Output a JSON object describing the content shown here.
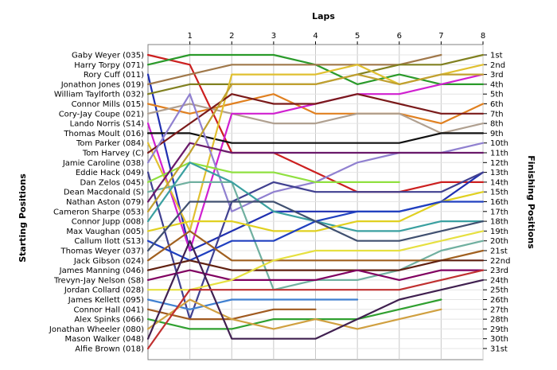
{
  "chart_data": {
    "type": "line",
    "title": "",
    "xlabel": "Laps",
    "ylabel_left": "Starting Positions",
    "ylabel_right": "Finishing Positions",
    "x_ticks": [
      "1",
      "2",
      "3",
      "4",
      "5",
      "6",
      "7",
      "8"
    ],
    "xlim": [
      0,
      8
    ],
    "ylim": [
      1,
      31
    ],
    "y_inverted": true,
    "grid": true,
    "legend": "none",
    "starting_labels": [
      "Gaby Weyer (035)",
      "Harry Torpy (071)",
      "Rory Cuff (011)",
      "Jonathon Jones (019)",
      "William Taylforth (032)",
      "Connor Mills (015)",
      "Cory-Jay Coupe (021)",
      "Lando Norris (S14)",
      "Thomas Moult (016)",
      "Tom Parker (084)",
      "Tom Harvey (C)",
      "Jamie Caroline (038)",
      "Eddie Hack (049)",
      "Dan Zelos (045)",
      "Dean Macdonald (S)",
      "Nathan Aston (079)",
      "Cameron Sharpe (053)",
      "Connor Jupp (008)",
      "Max Vaughan (005)",
      "Callum Ilott (S13)",
      "Thomas Weyer (037)",
      "Jack Gibson (024)",
      "James Manning (046)",
      "Trevyn-Jay Nelson (S8)",
      "Jordan Collard (028)",
      "James Kellett (095)",
      "Connor Hall (041)",
      "Alex Spinks (066)",
      "Jonathan Wheeler (080)",
      "Mason Walker (048)",
      "Alfie Brown (018)"
    ],
    "finishing_labels": [
      "1st",
      "2nd",
      "3rd",
      "4th",
      "5th",
      "6th",
      "7th",
      "8th",
      "9th",
      "10th",
      "11th",
      "12th",
      "13th",
      "14th",
      "15th",
      "16th",
      "17th",
      "18th",
      "19th",
      "20th",
      "21st",
      "22nd",
      "23rd",
      "24th",
      "25th",
      "26th",
      "27th",
      "28th",
      "29th",
      "30th",
      "31st"
    ],
    "series": [
      {
        "color": "#cc1f1f",
        "values": [
          1,
          2,
          11,
          11,
          13,
          15,
          15,
          14,
          14
        ]
      },
      {
        "color": "#2a9a2a",
        "values": [
          2,
          1,
          1,
          1,
          2,
          4,
          3,
          4,
          4
        ]
      },
      {
        "color": "#1f2fb0",
        "values": [
          3,
          21,
          19,
          17,
          17,
          17,
          17,
          16,
          13
        ]
      },
      {
        "color": "#a0784a",
        "values": [
          4,
          3,
          2,
          2,
          2,
          2,
          2,
          1,
          null
        ]
      },
      {
        "color": "#808020",
        "values": [
          5,
          4,
          4,
          4,
          4,
          3,
          2,
          2,
          1
        ]
      },
      {
        "color": "#e08020",
        "values": [
          6,
          7,
          6,
          5,
          7,
          7,
          7,
          8,
          6
        ]
      },
      {
        "color": "#b0a090",
        "values": [
          7,
          6,
          7,
          8,
          8,
          7,
          7,
          9,
          8
        ]
      },
      {
        "color": "#d020d0",
        "values": [
          8,
          21,
          7,
          7,
          6,
          5,
          5,
          4,
          3
        ]
      },
      {
        "color": "#101010",
        "values": [
          9,
          9,
          10,
          10,
          10,
          10,
          10,
          9,
          9
        ]
      },
      {
        "color": "#e0c030",
        "values": [
          10,
          19,
          3,
          3,
          3,
          2,
          4,
          3,
          2
        ]
      },
      {
        "color": "#7a1a1a",
        "values": [
          11,
          8,
          5,
          6,
          6,
          5,
          6,
          7,
          7
        ]
      },
      {
        "color": "#9080d0",
        "values": [
          12,
          5,
          17,
          15,
          14,
          12,
          11,
          11,
          10
        ]
      },
      {
        "color": "#404090",
        "values": [
          13,
          28,
          16,
          14,
          15,
          15,
          15,
          15,
          13
        ]
      },
      {
        "color": "#90e040",
        "values": [
          14,
          12,
          13,
          13,
          14,
          14,
          14,
          null,
          null
        ]
      },
      {
        "color": "#70b0a0",
        "values": [
          15,
          14,
          14,
          25,
          24,
          24,
          23,
          21,
          20
        ]
      },
      {
        "color": "#6a1a6a",
        "values": [
          16,
          10,
          11,
          11,
          11,
          11,
          11,
          11,
          11
        ]
      },
      {
        "color": "#c0a030",
        "values": [
          17,
          11,
          4,
          4,
          4,
          3,
          4,
          3,
          3
        ]
      },
      {
        "color": "#3aa0a0",
        "values": [
          18,
          12,
          14,
          17,
          18,
          19,
          19,
          18,
          18
        ]
      },
      {
        "color": "#e0d020",
        "values": [
          19,
          18,
          18,
          19,
          19,
          18,
          18,
          16,
          15
        ]
      },
      {
        "color": "#2040c0",
        "values": [
          20,
          22,
          20,
          20,
          18,
          17,
          17,
          16,
          16
        ]
      },
      {
        "color": "#405070",
        "values": [
          21,
          16,
          16,
          16,
          18,
          20,
          20,
          19,
          18
        ]
      },
      {
        "color": "#a06020",
        "values": [
          22,
          19,
          22,
          22,
          22,
          22,
          22,
          22,
          21
        ]
      },
      {
        "color": "#602010",
        "values": [
          23,
          22,
          23,
          23,
          23,
          23,
          23,
          22,
          22
        ]
      },
      {
        "color": "#800060",
        "values": [
          24,
          23,
          24,
          24,
          24,
          23,
          24,
          23,
          23
        ]
      },
      {
        "color": "#e6e040",
        "values": [
          25,
          25,
          24,
          22,
          21,
          21,
          21,
          20,
          19
        ]
      },
      {
        "color": "#4080d0",
        "values": [
          26,
          27,
          26,
          26,
          26,
          26,
          null,
          null,
          null
        ]
      },
      {
        "color": "#a05a20",
        "values": [
          27,
          28,
          28,
          27,
          27,
          null,
          null,
          null,
          null
        ]
      },
      {
        "color": "#30a030",
        "values": [
          28,
          29,
          29,
          28,
          28,
          28,
          27,
          26,
          null
        ]
      },
      {
        "color": "#d0a040",
        "values": [
          29,
          26,
          28,
          29,
          28,
          29,
          28,
          27,
          null
        ]
      },
      {
        "color": "#402050",
        "values": [
          30,
          20,
          30,
          30,
          30,
          28,
          26,
          25,
          24
        ]
      },
      {
        "color": "#c03030",
        "values": [
          31,
          25,
          25,
          25,
          25,
          25,
          25,
          24,
          23
        ]
      }
    ]
  }
}
